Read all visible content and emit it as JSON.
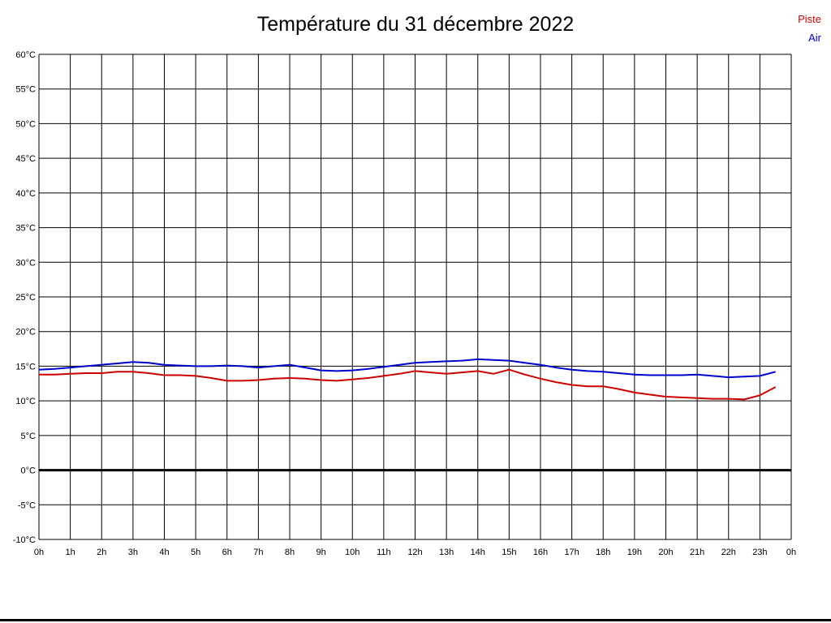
{
  "title": "Température du 31 décembre 2022",
  "legend": [
    {
      "label": "Piste",
      "color": "#cc0000"
    },
    {
      "label": "Air",
      "color": "#0000cc"
    }
  ],
  "chart_data": {
    "type": "line",
    "title": "Température du 31 décembre 2022",
    "xlabel": "",
    "ylabel": "",
    "grid": true,
    "legend_position": "top-right",
    "ylim": [
      -10,
      60
    ],
    "ytick_step": 5,
    "yticks_labels": [
      "60°C",
      "55°C",
      "50°C",
      "45°C",
      "40°C",
      "35°C",
      "30°C",
      "25°C",
      "20°C",
      "15°C",
      "10°C",
      "5°C",
      "0°C",
      "-5°C",
      "-10°C"
    ],
    "xlim_hours": [
      0,
      24
    ],
    "xticks_labels": [
      "0h",
      "1h",
      "2h",
      "3h",
      "4h",
      "5h",
      "6h",
      "7h",
      "8h",
      "9h",
      "10h",
      "11h",
      "12h",
      "13h",
      "14h",
      "15h",
      "16h",
      "17h",
      "18h",
      "19h",
      "20h",
      "21h",
      "22h",
      "23h",
      "0h"
    ],
    "zero_line": {
      "value": 0,
      "color": "#000000",
      "width": 3
    },
    "x": [
      0,
      0.5,
      1,
      1.5,
      2,
      2.5,
      3,
      3.5,
      4,
      4.5,
      5,
      5.5,
      6,
      6.5,
      7,
      7.5,
      8,
      8.5,
      9,
      9.5,
      10,
      10.5,
      11,
      11.5,
      12,
      12.5,
      13,
      13.5,
      14,
      14.5,
      15,
      15.5,
      16,
      16.5,
      17,
      17.5,
      18,
      18.5,
      19,
      19.5,
      20,
      20.5,
      21,
      21.5,
      22,
      22.5,
      23,
      23.5
    ],
    "series": [
      {
        "name": "Piste",
        "color": "#cc0000",
        "values": [
          13.8,
          13.8,
          13.9,
          14.0,
          14.0,
          14.2,
          14.2,
          14.0,
          13.7,
          13.7,
          13.6,
          13.3,
          12.9,
          12.9,
          13.0,
          13.2,
          13.3,
          13.2,
          13.0,
          12.9,
          13.1,
          13.3,
          13.6,
          13.9,
          14.3,
          14.1,
          13.9,
          14.1,
          14.3,
          13.9,
          14.5,
          13.8,
          13.2,
          12.7,
          12.3,
          12.1,
          12.1,
          11.7,
          11.2,
          10.9,
          10.6,
          10.5,
          10.4,
          10.3,
          10.3,
          10.2,
          10.8,
          12.0
        ]
      },
      {
        "name": "Air",
        "color": "#0000cc",
        "values": [
          14.5,
          14.6,
          14.8,
          15.0,
          15.2,
          15.4,
          15.6,
          15.5,
          15.2,
          15.1,
          15.0,
          15.0,
          15.1,
          15.0,
          14.8,
          15.0,
          15.2,
          14.8,
          14.4,
          14.3,
          14.4,
          14.6,
          14.9,
          15.2,
          15.5,
          15.6,
          15.7,
          15.8,
          16.0,
          15.9,
          15.8,
          15.5,
          15.2,
          14.8,
          14.5,
          14.3,
          14.2,
          14.0,
          13.8,
          13.7,
          13.7,
          13.7,
          13.8,
          13.6,
          13.4,
          13.5,
          13.6,
          14.2
        ]
      }
    ]
  }
}
